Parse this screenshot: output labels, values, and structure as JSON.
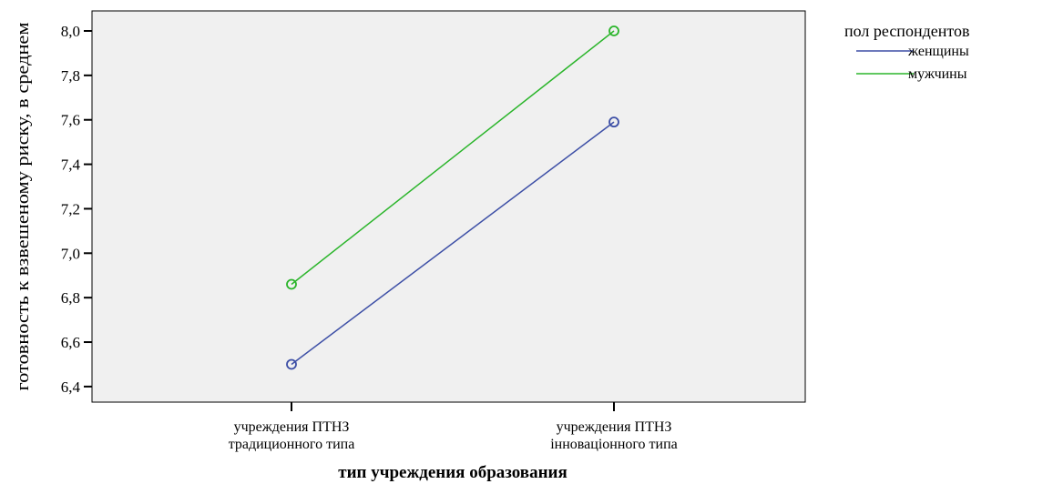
{
  "chart_data": {
    "type": "line",
    "xlabel": "тип учреждения образования",
    "ylabel": "готовность к взвешеному риску, в среднем",
    "categories": [
      [
        "учреждения ПТНЗ",
        "традиционного типа"
      ],
      [
        "учреждения  ПТНЗ",
        "інноваціонного типа"
      ]
    ],
    "ylim": [
      6.33,
      8.09
    ],
    "yticks": [
      6.4,
      6.6,
      6.8,
      7.0,
      7.2,
      7.4,
      7.6,
      7.8,
      8.0
    ],
    "ytick_labels": [
      "6,4",
      "6,6",
      "6,8",
      "7,0",
      "7,2",
      "7,4",
      "7,6",
      "7,8",
      "8,0"
    ],
    "legend": {
      "title": "пол респондентов",
      "position": "top-right"
    },
    "series": [
      {
        "name": "женщины",
        "color": "#3d4fa6",
        "values": [
          6.5,
          7.59
        ]
      },
      {
        "name": "мужчины",
        "color": "#2bb52b",
        "values": [
          6.86,
          8.0
        ]
      }
    ],
    "plot_background": "#f0f0f0",
    "grid": false
  }
}
